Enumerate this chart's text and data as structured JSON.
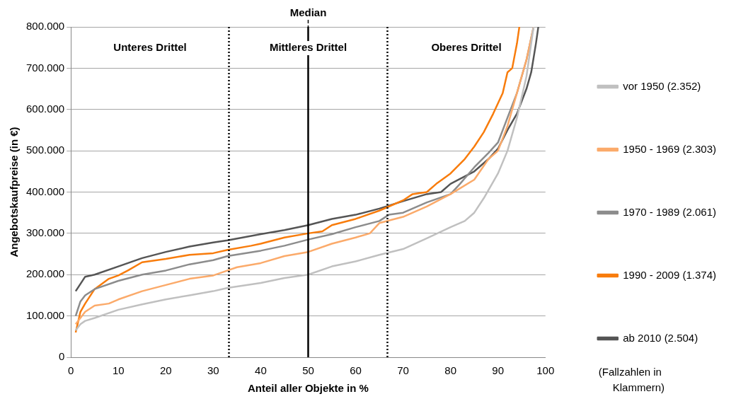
{
  "chart_data": {
    "type": "line",
    "xlabel": "Anteil aller Objekte in %",
    "ylabel": "Angebotskaufpreise (in €)",
    "xlim": [
      0,
      100
    ],
    "xticks": [
      0,
      10,
      20,
      30,
      40,
      50,
      60,
      70,
      80,
      90,
      100
    ],
    "ylim": [
      0,
      800000
    ],
    "yticks": [
      0,
      {
        "value": 100000,
        "label": "100.000"
      },
      {
        "value": 200000,
        "label": "200.000"
      },
      {
        "value": 300000,
        "label": "300.000"
      },
      {
        "value": 400000,
        "label": "400.000"
      },
      {
        "value": 500000,
        "label": "500.000"
      },
      {
        "value": 600000,
        "label": "600.000"
      },
      {
        "value": 700000,
        "label": "700.000"
      },
      {
        "value": 800000,
        "label": "800.000"
      }
    ],
    "grid": "y",
    "legend": "right",
    "marker": "none",
    "line_style": "solid",
    "ref_lines": [
      {
        "axis": "x",
        "value": 33.3,
        "color": "#000000",
        "line_style": "dotted"
      },
      {
        "axis": "x",
        "value": 50,
        "label": "Median",
        "color": "#000000",
        "line_style": "solid"
      },
      {
        "axis": "x",
        "value": 66.7,
        "color": "#000000",
        "line_style": "dotted"
      }
    ],
    "annotations": [
      "Unteres Drittel",
      "Mittleres Drittel",
      "Oberes Drittel",
      "(Fallzahlen in Klammern)"
    ],
    "series": [
      {
        "name": "vor 1950 (2.352)",
        "color": "#c0c0c0",
        "x": [
          1,
          2,
          3,
          5,
          10,
          15,
          20,
          25,
          30,
          33,
          40,
          45,
          50,
          55,
          60,
          65,
          70,
          75,
          80,
          83,
          85,
          87,
          90,
          92,
          94,
          96,
          97.5
        ],
        "values": [
          65000,
          80000,
          88000,
          95000,
          115000,
          128000,
          140000,
          150000,
          160000,
          168000,
          180000,
          192000,
          200000,
          220000,
          232000,
          248000,
          262000,
          288000,
          315000,
          330000,
          350000,
          385000,
          445000,
          500000,
          580000,
          680000,
          800000
        ]
      },
      {
        "name": "1950 - 1969 (2.303)",
        "color": "#fbaa6a",
        "x": [
          1,
          2,
          3,
          5,
          8,
          10,
          15,
          20,
          25,
          30,
          33,
          35,
          40,
          45,
          50,
          55,
          60,
          63,
          65,
          70,
          75,
          80,
          85,
          88,
          90,
          92,
          94,
          96,
          97.5
        ],
        "values": [
          80000,
          95000,
          110000,
          125000,
          130000,
          140000,
          160000,
          175000,
          190000,
          198000,
          210000,
          218000,
          228000,
          245000,
          255000,
          275000,
          290000,
          300000,
          325000,
          340000,
          365000,
          395000,
          430000,
          480000,
          500000,
          560000,
          640000,
          720000,
          800000
        ]
      },
      {
        "name": "1970 - 1989 (2.061)",
        "color": "#8c8c8c",
        "x": [
          1,
          2,
          3,
          5,
          10,
          15,
          20,
          25,
          30,
          33,
          40,
          45,
          50,
          55,
          60,
          65,
          67,
          70,
          75,
          80,
          82,
          85,
          88,
          90,
          92,
          94,
          96,
          97.5
        ],
        "values": [
          100000,
          135000,
          150000,
          165000,
          185000,
          200000,
          210000,
          225000,
          235000,
          245000,
          258000,
          270000,
          285000,
          298000,
          315000,
          330000,
          345000,
          350000,
          375000,
          395000,
          420000,
          460000,
          495000,
          520000,
          580000,
          640000,
          720000,
          800000
        ]
      },
      {
        "name": "1990 - 2009 (1.374)",
        "color": "#f87c0c",
        "x": [
          1,
          2,
          3,
          5,
          8,
          10,
          12,
          15,
          20,
          25,
          30,
          33,
          38,
          40,
          45,
          50,
          53,
          55,
          60,
          65,
          68,
          70,
          72,
          75,
          77,
          80,
          83,
          85,
          87,
          89,
          91,
          92,
          93,
          94,
          94.5
        ],
        "values": [
          60000,
          110000,
          130000,
          165000,
          190000,
          198000,
          210000,
          230000,
          238000,
          248000,
          252000,
          260000,
          270000,
          275000,
          290000,
          300000,
          305000,
          320000,
          335000,
          355000,
          370000,
          380000,
          395000,
          400000,
          420000,
          445000,
          480000,
          510000,
          545000,
          590000,
          640000,
          690000,
          700000,
          760000,
          800000
        ]
      },
      {
        "name": "ab 2010 (2.504)",
        "color": "#555555",
        "x": [
          1,
          3,
          5,
          10,
          15,
          20,
          25,
          30,
          33,
          40,
          45,
          50,
          55,
          60,
          65,
          70,
          75,
          78,
          80,
          85,
          88,
          90,
          92,
          94,
          96,
          97,
          98,
          98.5
        ],
        "values": [
          160000,
          195000,
          200000,
          220000,
          240000,
          255000,
          268000,
          278000,
          283000,
          298000,
          308000,
          320000,
          335000,
          345000,
          360000,
          378000,
          395000,
          400000,
          420000,
          450000,
          480000,
          505000,
          550000,
          590000,
          650000,
          690000,
          760000,
          800000
        ]
      }
    ]
  }
}
